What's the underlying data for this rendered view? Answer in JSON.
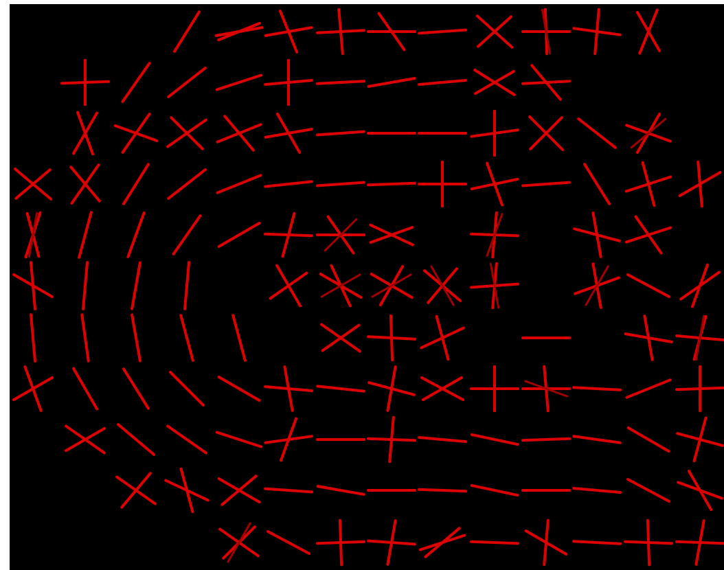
{
  "image": {
    "subject": "orientation-field-visualization",
    "colors": {
      "background": "#000000",
      "left_border": "#ffffff",
      "stroke_primary": "#dd0000",
      "stroke_secondary": "#a00000"
    }
  },
  "grid": {
    "columns": 14,
    "rows": 11
  },
  "glyphs": [
    {
      "r": 0,
      "c": 3,
      "a": [
        -58
      ]
    },
    {
      "r": 0,
      "c": 4,
      "a": [
        -10,
        -22
      ]
    },
    {
      "r": 0,
      "c": 5,
      "a": [
        -10,
        68
      ]
    },
    {
      "r": 0,
      "c": 6,
      "a": [
        -3,
        85
      ]
    },
    {
      "r": 0,
      "c": 7,
      "a": [
        0,
        55
      ]
    },
    {
      "r": 0,
      "c": 8,
      "a": [
        -4
      ]
    },
    {
      "r": 0,
      "c": 9,
      "a": [
        42,
        -42
      ]
    },
    {
      "r": 0,
      "c": 10,
      "a": [
        0,
        88,
        80
      ]
    },
    {
      "r": 0,
      "c": 11,
      "a": [
        8,
        -85
      ]
    },
    {
      "r": 0,
      "c": 12,
      "a": [
        -68,
        60
      ]
    },
    {
      "r": 1,
      "c": 1,
      "a": [
        -2,
        90
      ]
    },
    {
      "r": 1,
      "c": 2,
      "a": [
        -55
      ]
    },
    {
      "r": 1,
      "c": 3,
      "a": [
        -38
      ]
    },
    {
      "r": 1,
      "c": 4,
      "a": [
        -18
      ]
    },
    {
      "r": 1,
      "c": 5,
      "a": [
        -5,
        90
      ]
    },
    {
      "r": 1,
      "c": 6,
      "a": [
        -3
      ]
    },
    {
      "r": 1,
      "c": 7,
      "a": [
        -10
      ]
    },
    {
      "r": 1,
      "c": 8,
      "a": [
        -5
      ]
    },
    {
      "r": 1,
      "c": 9,
      "a": [
        32,
        -30
      ]
    },
    {
      "r": 1,
      "c": 10,
      "a": [
        -3,
        50
      ]
    },
    {
      "r": 2,
      "c": 1,
      "a": [
        -60,
        70
      ]
    },
    {
      "r": 2,
      "c": 2,
      "a": [
        -55,
        20
      ]
    },
    {
      "r": 2,
      "c": 3,
      "a": [
        -35,
        45
      ]
    },
    {
      "r": 2,
      "c": 4,
      "a": [
        -22,
        50
      ]
    },
    {
      "r": 2,
      "c": 5,
      "a": [
        -10,
        60
      ]
    },
    {
      "r": 2,
      "c": 6,
      "a": [
        -4
      ]
    },
    {
      "r": 2,
      "c": 7,
      "a": [
        0
      ]
    },
    {
      "r": 2,
      "c": 8,
      "a": [
        0
      ]
    },
    {
      "r": 2,
      "c": 9,
      "a": [
        -8,
        90
      ]
    },
    {
      "r": 2,
      "c": 10,
      "a": [
        45,
        -45
      ]
    },
    {
      "r": 2,
      "c": 11,
      "a": [
        38
      ]
    },
    {
      "r": 2,
      "c": 12,
      "a": [
        20,
        -60,
        -40
      ]
    },
    {
      "r": 3,
      "c": 0,
      "a": [
        40,
        -40
      ]
    },
    {
      "r": 3,
      "c": 1,
      "a": [
        -55,
        50
      ]
    },
    {
      "r": 3,
      "c": 2,
      "a": [
        -58
      ]
    },
    {
      "r": 3,
      "c": 3,
      "a": [
        -38
      ]
    },
    {
      "r": 3,
      "c": 4,
      "a": [
        -22
      ]
    },
    {
      "r": 3,
      "c": 5,
      "a": [
        -6
      ]
    },
    {
      "r": 3,
      "c": 6,
      "a": [
        -4
      ]
    },
    {
      "r": 3,
      "c": 7,
      "a": [
        -2
      ]
    },
    {
      "r": 3,
      "c": 8,
      "a": [
        0,
        90
      ]
    },
    {
      "r": 3,
      "c": 9,
      "a": [
        -12,
        70
      ]
    },
    {
      "r": 3,
      "c": 10,
      "a": [
        -4
      ]
    },
    {
      "r": 3,
      "c": 11,
      "a": [
        58
      ]
    },
    {
      "r": 3,
      "c": 12,
      "a": [
        -18,
        75
      ]
    },
    {
      "r": 3,
      "c": 13,
      "a": [
        -30,
        85
      ]
    },
    {
      "r": 4,
      "c": 0,
      "a": [
        -72,
        75,
        -80
      ]
    },
    {
      "r": 4,
      "c": 1,
      "a": [
        -75
      ]
    },
    {
      "r": 4,
      "c": 2,
      "a": [
        -70
      ]
    },
    {
      "r": 4,
      "c": 3,
      "a": [
        -55
      ]
    },
    {
      "r": 4,
      "c": 4,
      "a": [
        -30
      ]
    },
    {
      "r": 4,
      "c": 5,
      "a": [
        2,
        -75
      ]
    },
    {
      "r": 4,
      "c": 6,
      "a": [
        0,
        55,
        -45
      ]
    },
    {
      "r": 4,
      "c": 7,
      "a": [
        25,
        -20
      ]
    },
    {
      "r": 4,
      "c": 9,
      "a": [
        2,
        -85,
        -70
      ]
    },
    {
      "r": 4,
      "c": 11,
      "a": [
        15,
        80
      ]
    },
    {
      "r": 4,
      "c": 12,
      "a": [
        -18,
        55
      ]
    },
    {
      "r": 5,
      "c": 0,
      "a": [
        85,
        30
      ]
    },
    {
      "r": 5,
      "c": 1,
      "a": [
        -85
      ]
    },
    {
      "r": 5,
      "c": 2,
      "a": [
        -80
      ]
    },
    {
      "r": 5,
      "c": 3,
      "a": [
        -85
      ]
    },
    {
      "r": 5,
      "c": 5,
      "a": [
        60,
        -35
      ]
    },
    {
      "r": 5,
      "c": 6,
      "a": [
        30,
        65,
        -30
      ]
    },
    {
      "r": 5,
      "c": 7,
      "a": [
        30,
        -60,
        -30
      ]
    },
    {
      "r": 5,
      "c": 8,
      "a": [
        40,
        -50,
        60
      ]
    },
    {
      "r": 5,
      "c": 9,
      "a": [
        -4,
        -85,
        80
      ]
    },
    {
      "r": 5,
      "c": 11,
      "a": [
        -20,
        80,
        -60
      ]
    },
    {
      "r": 5,
      "c": 12,
      "a": [
        28
      ]
    },
    {
      "r": 5,
      "c": 13,
      "a": [
        -35,
        -70
      ]
    },
    {
      "r": 6,
      "c": 0,
      "a": [
        85
      ]
    },
    {
      "r": 6,
      "c": 1,
      "a": [
        82
      ]
    },
    {
      "r": 6,
      "c": 2,
      "a": [
        80
      ]
    },
    {
      "r": 6,
      "c": 3,
      "a": [
        75
      ]
    },
    {
      "r": 6,
      "c": 4,
      "a": [
        75
      ]
    },
    {
      "r": 6,
      "c": 6,
      "a": [
        35,
        -35
      ]
    },
    {
      "r": 6,
      "c": 7,
      "a": [
        3,
        88
      ]
    },
    {
      "r": 6,
      "c": 8,
      "a": [
        -25,
        75
      ]
    },
    {
      "r": 6,
      "c": 10,
      "a": [
        0
      ]
    },
    {
      "r": 6,
      "c": 12,
      "a": [
        10,
        80
      ]
    },
    {
      "r": 6,
      "c": 13,
      "a": [
        5,
        -75,
        -80
      ]
    },
    {
      "r": 7,
      "c": 0,
      "a": [
        70,
        -30
      ]
    },
    {
      "r": 7,
      "c": 1,
      "a": [
        60
      ]
    },
    {
      "r": 7,
      "c": 2,
      "a": [
        58
      ]
    },
    {
      "r": 7,
      "c": 3,
      "a": [
        45
      ]
    },
    {
      "r": 7,
      "c": 4,
      "a": [
        30
      ]
    },
    {
      "r": 7,
      "c": 5,
      "a": [
        5,
        80
      ]
    },
    {
      "r": 7,
      "c": 6,
      "a": [
        6
      ]
    },
    {
      "r": 7,
      "c": 7,
      "a": [
        15,
        -80
      ]
    },
    {
      "r": 7,
      "c": 8,
      "a": [
        28,
        -30
      ]
    },
    {
      "r": 7,
      "c": 9,
      "a": [
        0,
        90
      ]
    },
    {
      "r": 7,
      "c": 10,
      "a": [
        0,
        85,
        20
      ]
    },
    {
      "r": 7,
      "c": 11,
      "a": [
        3
      ]
    },
    {
      "r": 7,
      "c": 12,
      "a": [
        -22
      ]
    },
    {
      "r": 7,
      "c": 13,
      "a": [
        -2,
        90
      ]
    },
    {
      "r": 8,
      "c": 1,
      "a": [
        35,
        -30
      ]
    },
    {
      "r": 8,
      "c": 2,
      "a": [
        40
      ]
    },
    {
      "r": 8,
      "c": 3,
      "a": [
        35
      ]
    },
    {
      "r": 8,
      "c": 4,
      "a": [
        18
      ]
    },
    {
      "r": 8,
      "c": 5,
      "a": [
        -8,
        -70
      ]
    },
    {
      "r": 8,
      "c": 6,
      "a": [
        0
      ]
    },
    {
      "r": 8,
      "c": 7,
      "a": [
        2,
        -85
      ]
    },
    {
      "r": 8,
      "c": 8,
      "a": [
        5
      ]
    },
    {
      "r": 8,
      "c": 9,
      "a": [
        12
      ]
    },
    {
      "r": 8,
      "c": 10,
      "a": [
        -2
      ]
    },
    {
      "r": 8,
      "c": 11,
      "a": [
        8
      ]
    },
    {
      "r": 8,
      "c": 12,
      "a": [
        30
      ]
    },
    {
      "r": 8,
      "c": 13,
      "a": [
        15,
        -75
      ]
    },
    {
      "r": 9,
      "c": 2,
      "a": [
        35,
        -50
      ]
    },
    {
      "r": 9,
      "c": 3,
      "a": [
        25,
        75
      ]
    },
    {
      "r": 9,
      "c": 4,
      "a": [
        30,
        -40
      ]
    },
    {
      "r": 9,
      "c": 5,
      "a": [
        4
      ]
    },
    {
      "r": 9,
      "c": 6,
      "a": [
        10
      ]
    },
    {
      "r": 9,
      "c": 7,
      "a": [
        0
      ]
    },
    {
      "r": 9,
      "c": 8,
      "a": [
        2
      ]
    },
    {
      "r": 9,
      "c": 9,
      "a": [
        12
      ]
    },
    {
      "r": 9,
      "c": 10,
      "a": [
        0
      ]
    },
    {
      "r": 9,
      "c": 11,
      "a": [
        5
      ]
    },
    {
      "r": 9,
      "c": 12,
      "a": [
        28
      ]
    },
    {
      "r": 9,
      "c": 13,
      "a": [
        20,
        60
      ]
    },
    {
      "r": 10,
      "c": 4,
      "a": [
        35,
        -45,
        -60
      ]
    },
    {
      "r": 10,
      "c": 5,
      "a": [
        28
      ]
    },
    {
      "r": 10,
      "c": 6,
      "a": [
        -2,
        88
      ]
    },
    {
      "r": 10,
      "c": 7,
      "a": [
        4,
        -80
      ]
    },
    {
      "r": 10,
      "c": 8,
      "a": [
        -18,
        -40
      ]
    },
    {
      "r": 10,
      "c": 9,
      "a": [
        2
      ]
    },
    {
      "r": 10,
      "c": 10,
      "a": [
        30,
        -85
      ]
    },
    {
      "r": 10,
      "c": 11,
      "a": [
        3
      ]
    },
    {
      "r": 10,
      "c": 12,
      "a": [
        2,
        88
      ]
    },
    {
      "r": 10,
      "c": 13,
      "a": [
        2,
        -80
      ]
    }
  ]
}
